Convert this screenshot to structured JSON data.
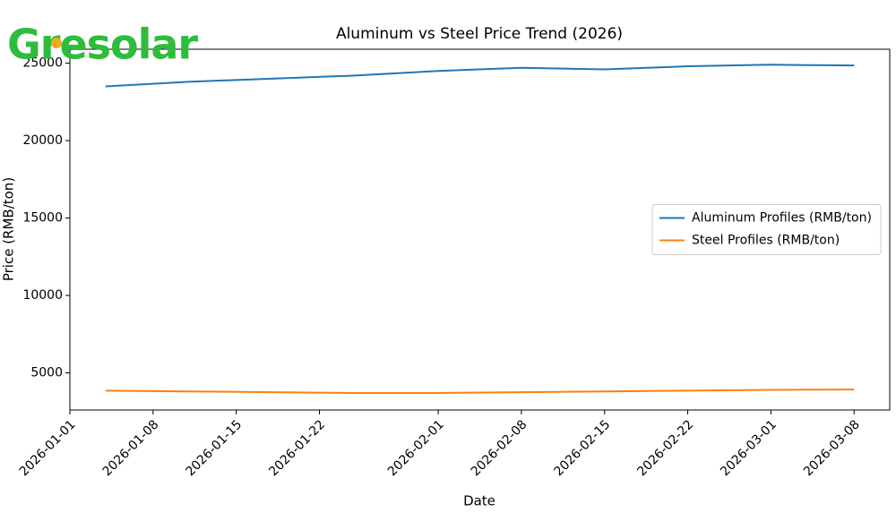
{
  "logo": "Gresolar",
  "chart_data": {
    "type": "line",
    "title": "Aluminum vs Steel Price Trend (2026)",
    "x_label": "Date",
    "y_label": "Price (RMB/ton)",
    "x": [
      "2026-01-04",
      "2026-01-11",
      "2026-01-18",
      "2026-01-25",
      "2026-02-01",
      "2026-02-08",
      "2026-02-15",
      "2026-02-22",
      "2026-03-01",
      "2026-03-08"
    ],
    "series": [
      {
        "name": "Aluminum Profiles (RMB/ton)",
        "color": "#1f77b4",
        "values": [
          23500,
          23800,
          24000,
          24200,
          24500,
          24700,
          24600,
          24800,
          24900,
          24850
        ]
      },
      {
        "name": "Steel Profiles (RMB/ton)",
        "color": "#ff7f0e",
        "values": [
          3850,
          3800,
          3750,
          3700,
          3700,
          3750,
          3800,
          3850,
          3900,
          3920
        ]
      }
    ],
    "xlim": [
      "2026-01-01",
      "2026-03-11"
    ],
    "xticks": [
      "2026-01-01",
      "2026-01-08",
      "2026-01-15",
      "2026-01-22",
      "2026-02-01",
      "2026-02-08",
      "2026-02-15",
      "2026-02-22",
      "2026-03-01",
      "2026-03-08"
    ],
    "ylim": [
      2600,
      25900
    ],
    "yticks": [
      5000,
      10000,
      15000,
      20000,
      25000
    ],
    "grid": false,
    "legend": "center right"
  }
}
